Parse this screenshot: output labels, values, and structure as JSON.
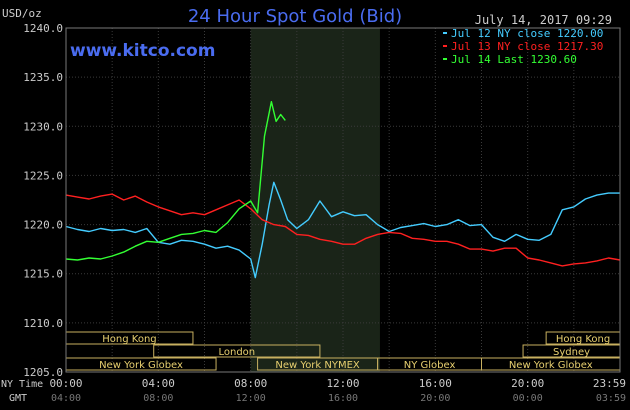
{
  "chart_data": {
    "type": "line",
    "title": "24 Hour Spot Gold (Bid)",
    "watermark": "www.kitco.com",
    "timestamp": "July 14, 2017 09:29",
    "ylabel": "USD/oz",
    "ylim": [
      1205,
      1240
    ],
    "yticks": [
      "1240.0",
      "1235.0",
      "1230.0",
      "1225.0",
      "1220.0",
      "1215.0",
      "1210.0",
      "1205.0"
    ],
    "xlim": [
      0,
      24
    ],
    "xrow_labels": [
      "NY Time",
      "GMT"
    ],
    "xticks_ny": [
      "00:00",
      "04:00",
      "08:00",
      "12:00",
      "16:00",
      "20:00",
      "23:59"
    ],
    "xticks_gmt": [
      "04:00",
      "08:00",
      "12:00",
      "16:00",
      "20:00",
      "00:00",
      "03:59"
    ],
    "highlight_x_range": [
      8.0,
      13.6
    ],
    "grid": true,
    "legend_position": "top-right",
    "legend": [
      {
        "label": "Jul 12 NY close 1220.00",
        "color": "#44ccff"
      },
      {
        "label": "Jul 13 NY close 1217.30",
        "color": "#ff2020"
      },
      {
        "label": "Jul 14 Last 1230.60",
        "color": "#33ff33"
      }
    ],
    "sessions": [
      {
        "label": "Hong Kong",
        "start": 0.0,
        "end": 5.5,
        "row": 0
      },
      {
        "label": "London",
        "start": 3.8,
        "end": 11.0,
        "row": 1
      },
      {
        "label": "New York Globex",
        "start": 0.0,
        "end": 6.5,
        "row": 2
      },
      {
        "label": "New York NYMEX",
        "start": 8.3,
        "end": 13.5,
        "row": 2
      },
      {
        "label": "NY Globex",
        "start": 13.5,
        "end": 18.0,
        "row": 2
      },
      {
        "label": "Hong Kong",
        "start": 20.8,
        "end": 24.0,
        "row": 0
      },
      {
        "label": "Sydney",
        "start": 19.8,
        "end": 24.0,
        "row": 1
      },
      {
        "label": "New York Globex",
        "start": 18.0,
        "end": 24.0,
        "row": 2
      }
    ],
    "series": [
      {
        "name": "Jul 12",
        "color": "#44ccff",
        "x": [
          0,
          0.5,
          1,
          1.5,
          2,
          2.5,
          3,
          3.5,
          4,
          4.5,
          5,
          5.5,
          6,
          6.5,
          7,
          7.5,
          8,
          8.2,
          8.5,
          8.8,
          9,
          9.3,
          9.6,
          10,
          10.5,
          11,
          11.5,
          12,
          12.5,
          13,
          13.5,
          14,
          14.5,
          15,
          15.5,
          16,
          16.5,
          17,
          17.5,
          18,
          18.5,
          19,
          19.5,
          20,
          20.5,
          21,
          21.5,
          22,
          22.5,
          23,
          23.5,
          24
        ],
        "y": [
          1219.8,
          1219.5,
          1219.3,
          1219.6,
          1219.4,
          1219.5,
          1219.2,
          1219.6,
          1218.2,
          1218.0,
          1218.4,
          1218.3,
          1218.0,
          1217.6,
          1217.8,
          1217.4,
          1216.5,
          1214.6,
          1218.0,
          1222.0,
          1224.3,
          1222.5,
          1220.5,
          1219.6,
          1220.5,
          1222.4,
          1220.8,
          1221.3,
          1220.9,
          1221.0,
          1220.0,
          1219.3,
          1219.7,
          1219.9,
          1220.1,
          1219.8,
          1220.0,
          1220.5,
          1219.9,
          1220.0,
          1218.7,
          1218.3,
          1219.0,
          1218.5,
          1218.4,
          1219.0,
          1221.5,
          1221.8,
          1222.6,
          1223.0,
          1223.2,
          1223.2
        ]
      },
      {
        "name": "Jul 13",
        "color": "#ff2020",
        "x": [
          0,
          0.5,
          1,
          1.5,
          2,
          2.5,
          3,
          3.5,
          4,
          4.5,
          5,
          5.5,
          6,
          6.5,
          7,
          7.5,
          8,
          8.5,
          9,
          9.5,
          10,
          10.5,
          11,
          11.5,
          12,
          12.5,
          13,
          13.5,
          14,
          14.5,
          15,
          15.5,
          16,
          16.5,
          17,
          17.5,
          18,
          18.5,
          19,
          19.5,
          20,
          20.5,
          21,
          21.5,
          22,
          22.5,
          23,
          23.5,
          24
        ],
        "y": [
          1223.0,
          1222.8,
          1222.6,
          1222.9,
          1223.1,
          1222.5,
          1222.9,
          1222.3,
          1221.8,
          1221.4,
          1221.0,
          1221.2,
          1221.0,
          1221.5,
          1222.0,
          1222.5,
          1221.6,
          1220.5,
          1220.0,
          1219.8,
          1219.0,
          1218.9,
          1218.5,
          1218.3,
          1218.0,
          1218.0,
          1218.6,
          1219.0,
          1219.2,
          1219.1,
          1218.6,
          1218.5,
          1218.3,
          1218.3,
          1218.0,
          1217.5,
          1217.5,
          1217.3,
          1217.6,
          1217.6,
          1216.6,
          1216.4,
          1216.1,
          1215.8,
          1216.0,
          1216.1,
          1216.3,
          1216.6,
          1216.4
        ]
      },
      {
        "name": "Jul 14",
        "color": "#33ff33",
        "x": [
          0,
          0.5,
          1,
          1.5,
          2,
          2.5,
          3,
          3.5,
          4,
          4.5,
          5,
          5.5,
          6,
          6.5,
          7,
          7.5,
          8,
          8.3,
          8.6,
          8.9,
          9.1,
          9.3,
          9.5
        ],
        "y": [
          1216.5,
          1216.4,
          1216.6,
          1216.5,
          1216.8,
          1217.2,
          1217.8,
          1218.3,
          1218.2,
          1218.6,
          1219.0,
          1219.1,
          1219.4,
          1219.2,
          1220.2,
          1221.6,
          1222.4,
          1221.2,
          1229.0,
          1232.5,
          1230.5,
          1231.2,
          1230.6
        ]
      }
    ]
  }
}
